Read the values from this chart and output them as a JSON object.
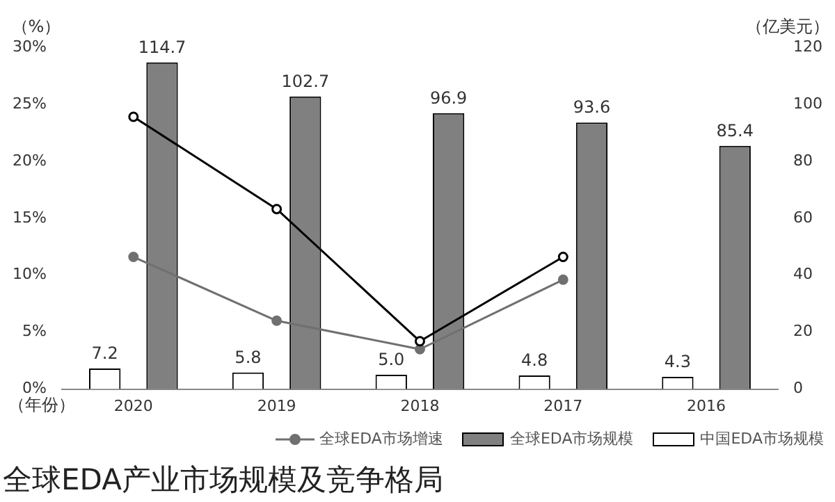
{
  "chart_data": {
    "type": "bar",
    "annotations": [
      "全球EDA产业市场规模及竞争格局"
    ],
    "xlabel": "（年份）",
    "ylabel": "（%）",
    "y2label": "（亿美元）",
    "categories": [
      "2020",
      "2019",
      "2018",
      "2017",
      "2016"
    ],
    "series": [
      {
        "name": "中国EDA市场规模",
        "axis": "y2",
        "color": "#ffffff",
        "values": [
          7.2,
          5.8,
          5.0,
          4.8,
          4.3
        ],
        "value_labels": [
          "7.2",
          "5.8",
          "5.0",
          "4.8",
          "4.3"
        ]
      },
      {
        "name": "全球EDA市场规模",
        "axis": "y2",
        "color": "#808080",
        "values": [
          114.7,
          102.7,
          96.9,
          93.6,
          85.4
        ],
        "value_labels": [
          "114.7",
          "102.7",
          "96.9",
          "93.6",
          "85.4"
        ]
      },
      {
        "type": "line",
        "axis": "y",
        "color": "#000000",
        "marker": "circle",
        "values": [
          23.9,
          15.8,
          4.2,
          11.6,
          null
        ]
      },
      {
        "name": "全球EDA市场增速",
        "type": "line",
        "axis": "y",
        "color": "#707070",
        "marker": "circle",
        "values": [
          11.6,
          6.0,
          3.5,
          9.6,
          null
        ]
      }
    ],
    "ylim": [
      0,
      30
    ],
    "yticks": [
      {
        "value": 0,
        "label": "0%"
      },
      {
        "value": 5,
        "label": "5%"
      },
      {
        "value": 10,
        "label": "10%"
      },
      {
        "value": 15,
        "label": "15%"
      },
      {
        "value": 20,
        "label": "20%"
      },
      {
        "value": 25,
        "label": "25%"
      },
      {
        "value": 30,
        "label": "30%"
      }
    ],
    "y2lim": [
      0,
      120
    ],
    "y2ticks": [
      0,
      20,
      40,
      60,
      80,
      100,
      120
    ],
    "grid": false,
    "legend": "bottom"
  }
}
